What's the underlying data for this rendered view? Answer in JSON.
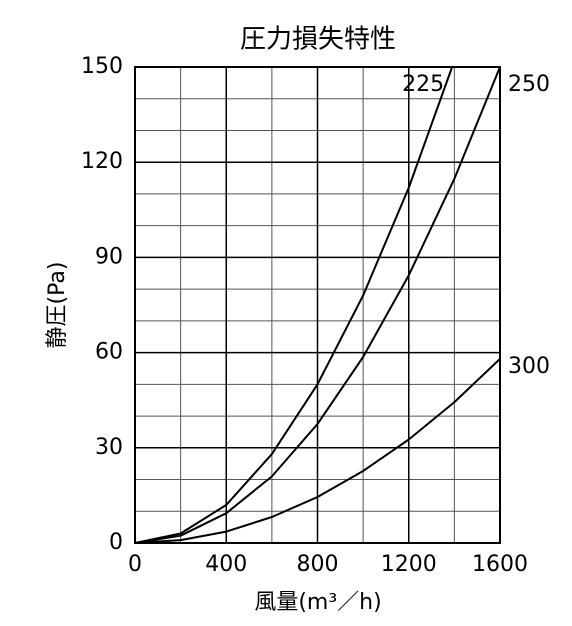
{
  "chart_data": {
    "type": "line",
    "title": "圧力損失特性",
    "x_label": "風量(m³／h)",
    "y_label": "静圧(Pa)",
    "xlim": [
      0,
      1600
    ],
    "xticks": [
      0,
      400,
      800,
      1200,
      1600
    ],
    "ylim": [
      0,
      150
    ],
    "yticks": [
      0,
      30,
      60,
      90,
      120,
      150
    ],
    "grid": true,
    "series": [
      {
        "name": "225",
        "color": "#000000",
        "x": [
          0,
          200,
          400,
          600,
          800,
          1000,
          1200,
          1390
        ],
        "values": [
          0,
          3,
          12,
          28,
          50,
          78,
          112,
          150
        ]
      },
      {
        "name": "250",
        "color": "#000000",
        "x": [
          0,
          200,
          400,
          600,
          800,
          1000,
          1200,
          1400,
          1600
        ],
        "values": [
          0,
          2.3,
          9.4,
          21,
          37.5,
          58.6,
          84.4,
          114.8,
          150
        ]
      },
      {
        "name": "300",
        "color": "#000000",
        "x": [
          0,
          200,
          400,
          600,
          800,
          1000,
          1200,
          1400,
          1600
        ],
        "values": [
          0,
          0.9,
          3.6,
          8.2,
          14.5,
          22.7,
          32.6,
          44.4,
          58
        ]
      }
    ]
  }
}
